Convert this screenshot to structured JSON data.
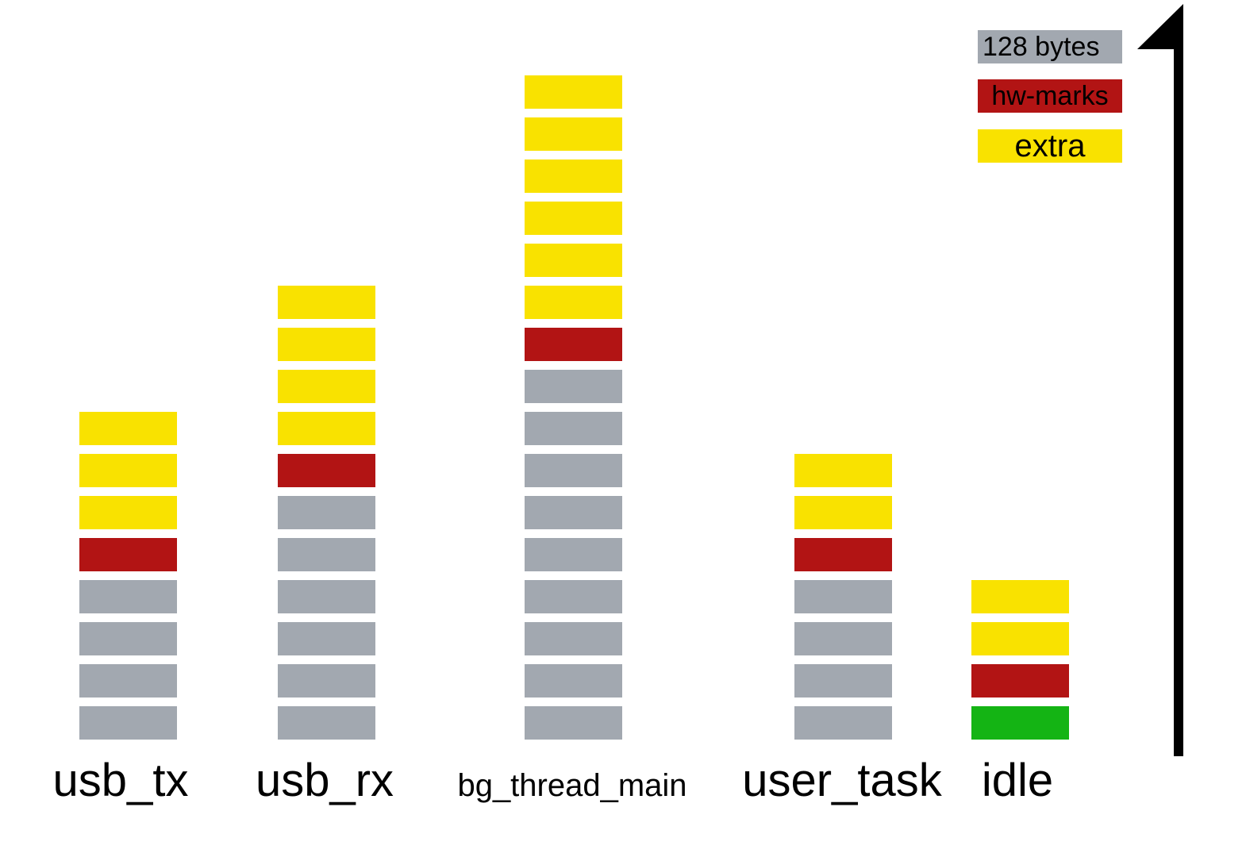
{
  "colors": {
    "base": "#a2a8b0",
    "hw_marks": "#b21414",
    "extra": "#f9e200",
    "green": "#14b414"
  },
  "legend": {
    "bytes_label": "128 bytes",
    "hw_marks_label": "hw-marks",
    "extra_label": "extra"
  },
  "tasks": [
    {
      "name": "usb_tx",
      "stack": [
        "base",
        "base",
        "base",
        "base",
        "hw_marks",
        "extra",
        "extra",
        "extra"
      ]
    },
    {
      "name": "usb_rx",
      "stack": [
        "base",
        "base",
        "base",
        "base",
        "base",
        "base",
        "hw_marks",
        "extra",
        "extra",
        "extra",
        "extra"
      ]
    },
    {
      "name": "bg_thread_main",
      "stack": [
        "base",
        "base",
        "base",
        "base",
        "base",
        "base",
        "base",
        "base",
        "base",
        "hw_marks",
        "extra",
        "extra",
        "extra",
        "extra",
        "extra",
        "extra"
      ]
    },
    {
      "name": "user_task",
      "stack": [
        "base",
        "base",
        "base",
        "base",
        "hw_marks",
        "extra",
        "extra"
      ]
    },
    {
      "name": "idle",
      "stack": [
        "green",
        "hw_marks",
        "extra",
        "extra"
      ]
    }
  ]
}
